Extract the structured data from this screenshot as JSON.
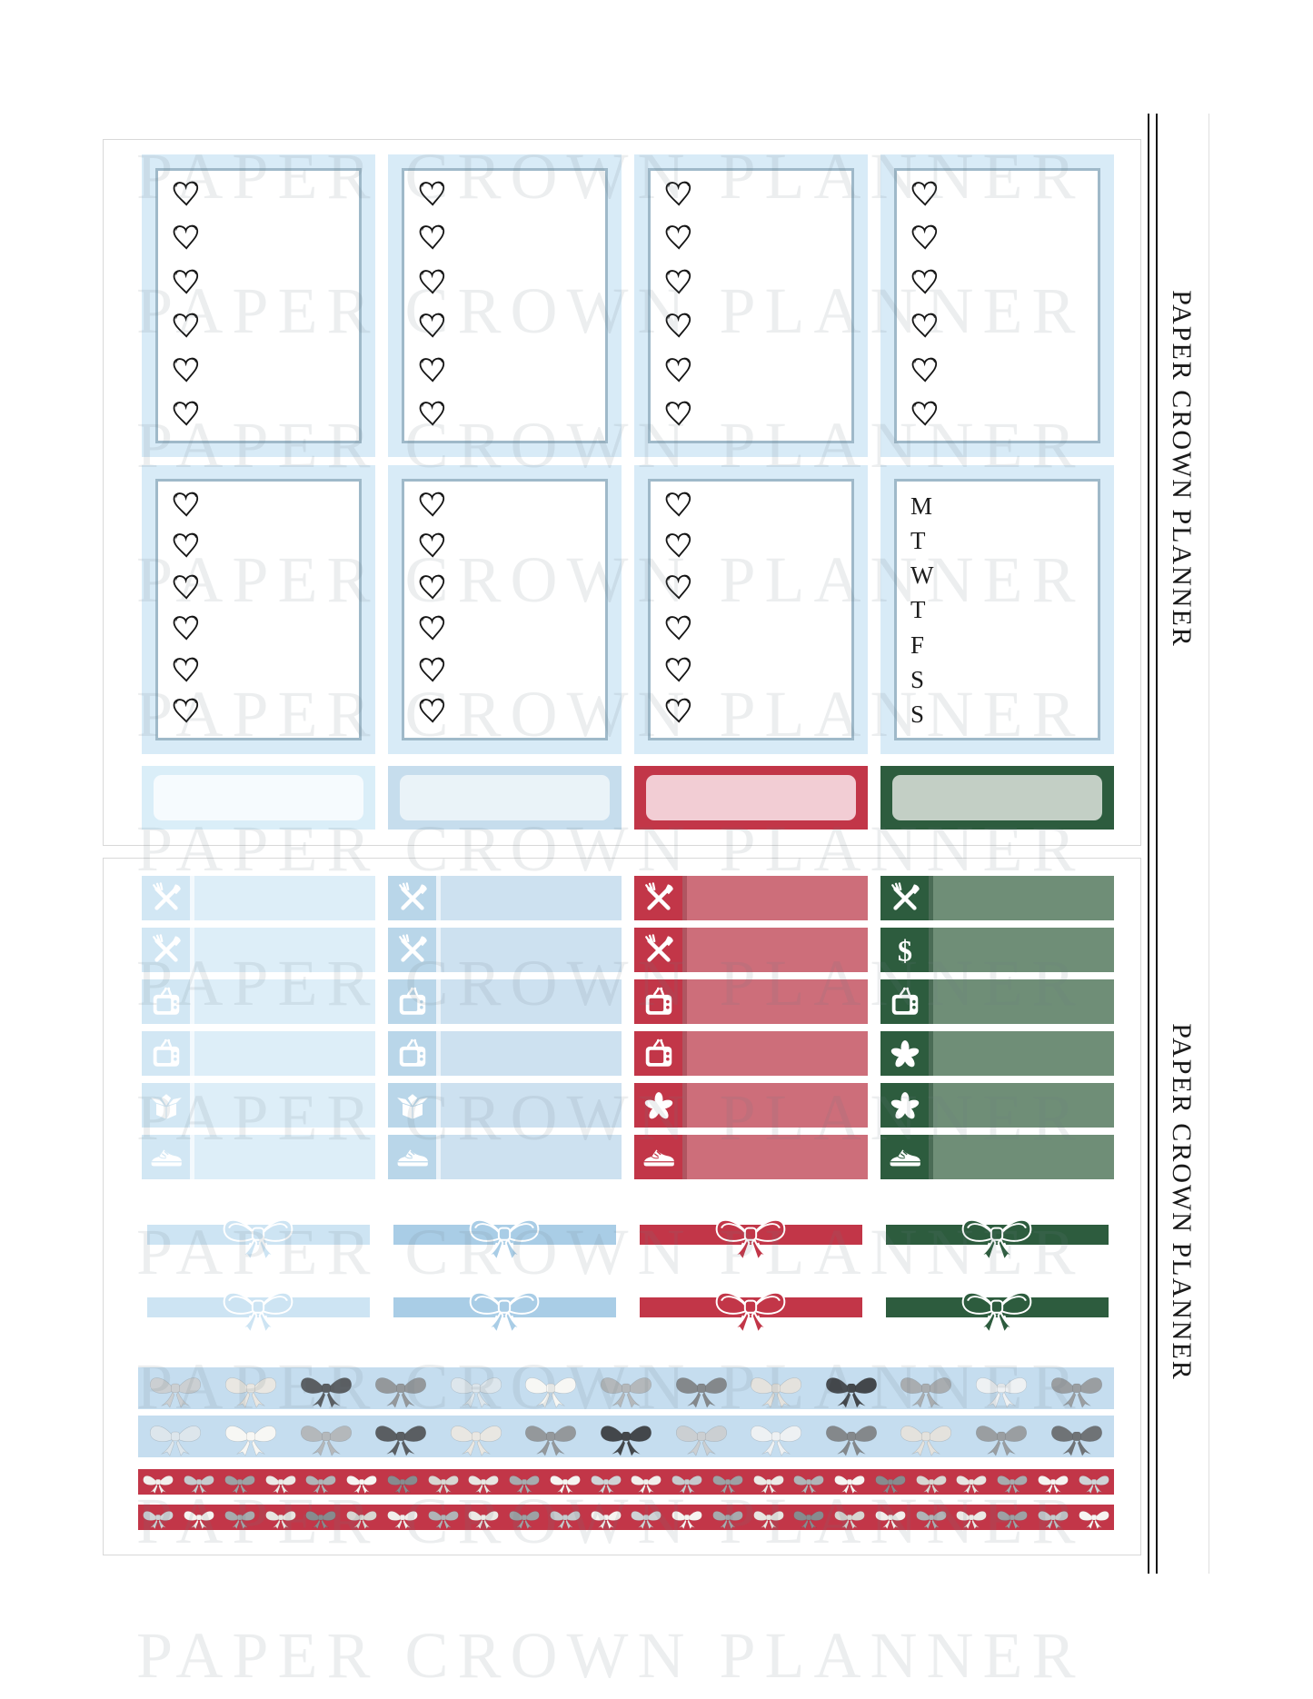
{
  "watermark": {
    "text": "PAPER CROWN PLANNER"
  },
  "side_labels": {
    "top": "PAPER CROWN PLANNER",
    "bottom": "PAPER CROWN PLANNER"
  },
  "palette": {
    "sticker_band_blue": "#d8ebf7",
    "box_border": "#9fb9c9",
    "red": "#c23648",
    "green": "#2d5c3e",
    "washi_blue": "#c5ddef"
  },
  "top_sheet": {
    "full_box_stickers": {
      "rows": 2,
      "columns": 4,
      "heart_boxes": 7,
      "hearts_per_box": 6,
      "weekday_box": {
        "letters": [
          "M",
          "T",
          "W",
          "T",
          "F",
          "S",
          "S"
        ]
      }
    },
    "header_box_stickers": [
      {
        "name": "pale-blue-header",
        "outer": "#daeef8",
        "inner": "#f6fbfe"
      },
      {
        "name": "light-blue-header",
        "outer": "#c6dded",
        "inner": "#eaf3f8"
      },
      {
        "name": "red-header",
        "outer": "#c23648",
        "inner": "#f2cdd4"
      },
      {
        "name": "green-header",
        "outer": "#2d5c3e",
        "inner": "#c3cfc5"
      }
    ]
  },
  "bottom_sheet": {
    "habit_tracker_columns": [
      {
        "name": "pale-blue",
        "icon_square": "#d2e7f4",
        "bar": "#ddeef8",
        "divider": "rgba(255,255,255,0.65)",
        "icon_color": "#ffffff",
        "icons": [
          "utensils",
          "utensils",
          "tv",
          "tv",
          "box",
          "sneaker"
        ]
      },
      {
        "name": "light-blue",
        "icon_square": "#b9d6e9",
        "bar": "#cde1f0",
        "divider": "rgba(255,255,255,0.6)",
        "icon_color": "#ffffff",
        "icons": [
          "utensils",
          "utensils",
          "tv",
          "tv",
          "box",
          "sneaker"
        ]
      },
      {
        "name": "red",
        "icon_square": "#c23648",
        "bar": "#cd6e7a",
        "divider": "rgba(90,10,25,0.25)",
        "icon_color": "#ffffff",
        "icons": [
          "utensils",
          "utensils",
          "tv",
          "tv",
          "asterisk",
          "sneaker"
        ]
      },
      {
        "name": "green",
        "icon_square": "#2d5c3e",
        "bar": "#6f8e77",
        "divider": "rgba(10,45,25,0.35)",
        "icon_color": "#ffffff",
        "icons": [
          "utensils",
          "dollar",
          "tv",
          "asterisk",
          "asterisk",
          "sneaker"
        ]
      }
    ],
    "bow_dividers": {
      "rows": 2,
      "colors": [
        "#cde4f3",
        "#a9cde6",
        "#c23648",
        "#2d5c3e"
      ]
    },
    "washi_strips": [
      {
        "name": "blue-bow-washi-1",
        "background": "#c5ddef",
        "bows": 13,
        "bow_colors": [
          "#cbcfd2",
          "#e9e7e2",
          "#5a5e62",
          "#94989b",
          "#dde6ec",
          "#f7f7f4",
          "#b4b8bb",
          "#84888b",
          "#e4e2dd",
          "#43474b",
          "#a9adb0",
          "#eef1f3",
          "#9a9ea1"
        ]
      },
      {
        "name": "blue-bow-washi-2",
        "background": "#c5ddef",
        "bows": 13,
        "bow_colors": [
          "#dde6ec",
          "#f7f7f4",
          "#b4b8bb",
          "#5a5e62",
          "#e9e7e2",
          "#94989b",
          "#43474b",
          "#cbcfd2",
          "#eef1f3",
          "#84888b",
          "#e4e2dd",
          "#9a9ea1",
          "#6f7376"
        ]
      },
      {
        "name": "red-bow-washi-1",
        "background": "#c23648",
        "bows": 24,
        "bow_colors": [
          "#f2efec",
          "#c6cacd",
          "#9da1a4",
          "#eceae6",
          "#b0b4b7",
          "#f7f5f2",
          "#878b8e",
          "#d8d6d2",
          "#e8e6e2",
          "#a7abae",
          "#f6f4f1",
          "#cfd3d6"
        ]
      },
      {
        "name": "red-bow-washi-2",
        "background": "#c23648",
        "bows": 24,
        "bow_colors": [
          "#cfd3d6",
          "#f6f4f1",
          "#a7abae",
          "#e8e6e2",
          "#878b8e",
          "#d8d6d2",
          "#f2efec",
          "#b0b4b7",
          "#eceae6",
          "#9da1a4",
          "#c6cacd",
          "#f7f5f2"
        ]
      }
    ]
  }
}
